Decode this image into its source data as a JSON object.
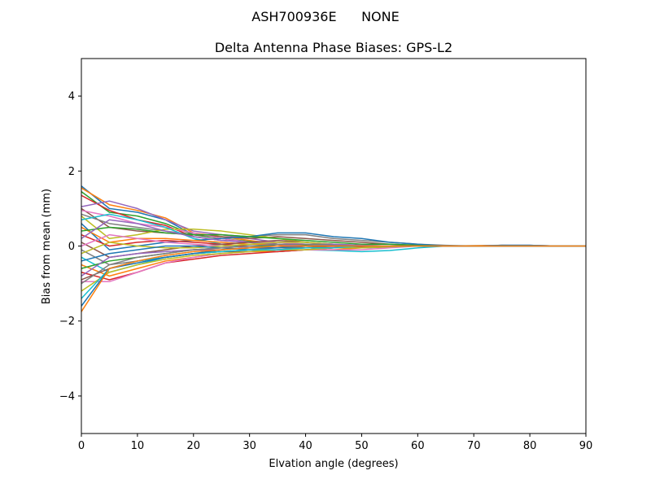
{
  "figure": {
    "suptitle": "ASH700936E      NONE"
  },
  "chart_data": {
    "type": "line",
    "title": "Delta Antenna Phase Biases: GPS-L2",
    "xlabel": "Elvation angle (degrees)",
    "ylabel": "Bias from mean (mm)",
    "xlim": [
      0,
      90
    ],
    "ylim": [
      -5,
      5
    ],
    "xticks": [
      0,
      10,
      20,
      30,
      40,
      50,
      60,
      70,
      80,
      90
    ],
    "yticks": [
      -4,
      -2,
      0,
      2,
      4
    ],
    "xtick_labels": [
      "0",
      "10",
      "20",
      "30",
      "40",
      "50",
      "60",
      "70",
      "80",
      "90"
    ],
    "ytick_labels": [
      "−4",
      "−2",
      "0",
      "2",
      "4"
    ],
    "grid": false,
    "legend": "none",
    "x": [
      0,
      5,
      10,
      15,
      20,
      25,
      30,
      35,
      40,
      45,
      50,
      55,
      60,
      65,
      70,
      75,
      80,
      85,
      90
    ],
    "palette": [
      "#1f77b4",
      "#ff7f0e",
      "#2ca02c",
      "#d62728",
      "#9467bd",
      "#8c564b",
      "#e377c2",
      "#7f7f7f",
      "#bcbd22",
      "#17becf"
    ],
    "series": [
      {
        "values": [
          1.6,
          1.0,
          0.9,
          0.7,
          0.3,
          0.2,
          0.1,
          0.0,
          -0.05,
          -0.05,
          -0.05,
          -0.03,
          0.0,
          0.0,
          0.0,
          0.02,
          0.02,
          0.0,
          0.0
        ]
      },
      {
        "values": [
          1.55,
          1.1,
          0.95,
          0.75,
          0.35,
          0.25,
          0.15,
          0.05,
          0.0,
          -0.02,
          -0.04,
          -0.03,
          0.0,
          0.0,
          0.01,
          0.02,
          0.01,
          0.0,
          0.0
        ]
      },
      {
        "values": [
          1.45,
          0.9,
          0.8,
          0.6,
          0.3,
          0.2,
          0.12,
          0.05,
          0.02,
          0.0,
          -0.02,
          -0.02,
          0.0,
          0.0,
          0.0,
          0.01,
          0.01,
          0.0,
          0.0
        ]
      },
      {
        "values": [
          1.35,
          0.95,
          0.7,
          0.55,
          0.25,
          0.15,
          0.1,
          0.05,
          0.0,
          0.0,
          -0.02,
          0.0,
          0.0,
          0.0,
          0.0,
          0.0,
          0.0,
          0.0,
          0.0
        ]
      },
      {
        "values": [
          1.05,
          1.2,
          1.0,
          0.7,
          0.4,
          0.3,
          0.2,
          0.1,
          0.05,
          0.02,
          0.0,
          0.0,
          0.0,
          0.0,
          0.0,
          0.02,
          0.02,
          0.0,
          0.0
        ]
      },
      {
        "values": [
          1.0,
          0.5,
          0.4,
          0.35,
          0.3,
          0.25,
          0.2,
          0.25,
          0.2,
          0.15,
          0.1,
          0.05,
          0.02,
          0.0,
          0.0,
          0.0,
          0.0,
          0.0,
          0.0
        ]
      },
      {
        "values": [
          0.95,
          0.8,
          0.6,
          0.5,
          0.35,
          0.2,
          0.1,
          0.1,
          0.05,
          0.05,
          0.02,
          0.0,
          0.0,
          0.0,
          0.0,
          0.0,
          0.0,
          0.0,
          0.0
        ]
      },
      {
        "values": [
          0.85,
          0.6,
          0.5,
          0.4,
          0.3,
          0.3,
          0.25,
          0.3,
          0.3,
          0.2,
          0.15,
          0.1,
          0.05,
          0.02,
          0.0,
          0.0,
          0.0,
          0.0,
          0.0
        ]
      },
      {
        "values": [
          0.8,
          0.2,
          0.3,
          0.45,
          0.45,
          0.4,
          0.3,
          0.2,
          0.1,
          0.05,
          0.0,
          -0.02,
          0.0,
          0.0,
          0.0,
          0.0,
          0.0,
          0.0,
          0.0
        ]
      },
      {
        "values": [
          0.7,
          0.85,
          0.7,
          0.5,
          0.2,
          0.05,
          -0.05,
          -0.05,
          0.0,
          0.0,
          0.0,
          0.0,
          0.0,
          0.0,
          0.0,
          0.0,
          0.0,
          0.0,
          0.0
        ]
      },
      {
        "values": [
          0.6,
          -0.1,
          0.0,
          0.1,
          0.15,
          0.2,
          0.25,
          0.35,
          0.35,
          0.25,
          0.2,
          0.1,
          0.05,
          0.0,
          0.0,
          0.02,
          0.02,
          0.0,
          0.0
        ]
      },
      {
        "values": [
          0.5,
          0.1,
          0.2,
          0.2,
          0.15,
          0.1,
          0.05,
          0.05,
          0.0,
          0.0,
          0.0,
          0.0,
          0.0,
          0.0,
          0.0,
          0.0,
          0.0,
          0.0,
          0.0
        ]
      },
      {
        "values": [
          0.4,
          0.5,
          0.45,
          0.35,
          0.3,
          0.3,
          0.25,
          0.2,
          0.15,
          0.1,
          0.05,
          0.05,
          0.02,
          0.0,
          0.0,
          0.0,
          0.0,
          0.0,
          0.0
        ]
      },
      {
        "values": [
          0.3,
          0.0,
          0.1,
          0.15,
          0.1,
          0.05,
          0.0,
          0.0,
          -0.05,
          -0.05,
          -0.02,
          0.0,
          0.0,
          0.0,
          0.0,
          0.0,
          0.0,
          0.0,
          0.0
        ]
      },
      {
        "values": [
          0.2,
          0.7,
          0.6,
          0.4,
          0.25,
          0.15,
          0.1,
          0.05,
          0.05,
          0.02,
          0.0,
          0.0,
          0.0,
          0.0,
          0.0,
          0.0,
          0.0,
          0.0,
          0.0
        ]
      },
      {
        "values": [
          0.1,
          -0.3,
          -0.2,
          -0.1,
          0.0,
          0.05,
          0.1,
          0.15,
          0.1,
          0.05,
          0.0,
          0.0,
          0.0,
          0.0,
          0.0,
          0.0,
          0.0,
          0.0,
          0.0
        ]
      },
      {
        "values": [
          0.0,
          0.3,
          0.2,
          0.1,
          0.05,
          0.0,
          -0.05,
          -0.05,
          -0.05,
          -0.02,
          0.0,
          0.0,
          0.0,
          0.0,
          0.0,
          0.0,
          0.0,
          0.0,
          0.0
        ]
      },
      {
        "values": [
          -0.1,
          -0.5,
          -0.4,
          -0.3,
          -0.2,
          -0.15,
          -0.1,
          -0.05,
          -0.05,
          -0.05,
          -0.05,
          -0.02,
          0.0,
          0.0,
          0.0,
          0.0,
          0.0,
          0.0,
          0.0
        ]
      },
      {
        "values": [
          -0.2,
          0.1,
          0.0,
          -0.05,
          -0.05,
          0.0,
          0.05,
          0.1,
          0.1,
          0.05,
          0.02,
          0.0,
          0.0,
          0.0,
          0.0,
          0.0,
          0.0,
          0.0,
          0.0
        ]
      },
      {
        "values": [
          -0.3,
          -0.7,
          -0.5,
          -0.3,
          -0.2,
          -0.15,
          -0.1,
          -0.1,
          -0.1,
          -0.12,
          -0.15,
          -0.12,
          -0.05,
          0.0,
          0.0,
          0.0,
          0.0,
          0.0,
          0.0
        ]
      },
      {
        "values": [
          -0.4,
          -0.2,
          -0.1,
          0.0,
          0.0,
          -0.05,
          -0.1,
          -0.15,
          -0.1,
          -0.05,
          0.0,
          0.0,
          0.0,
          0.0,
          0.0,
          0.0,
          0.0,
          0.0,
          0.0
        ]
      },
      {
        "values": [
          -0.5,
          -0.8,
          -0.6,
          -0.4,
          -0.3,
          -0.2,
          -0.15,
          -0.15,
          -0.1,
          -0.1,
          -0.05,
          -0.02,
          0.0,
          0.0,
          0.0,
          0.0,
          0.0,
          0.0,
          0.0
        ]
      },
      {
        "values": [
          -0.6,
          -0.4,
          -0.3,
          -0.2,
          -0.1,
          -0.05,
          0.0,
          0.0,
          0.0,
          0.0,
          0.0,
          0.0,
          0.0,
          0.0,
          0.0,
          0.0,
          0.0,
          0.0,
          0.0
        ]
      },
      {
        "values": [
          -0.7,
          -0.9,
          -0.7,
          -0.45,
          -0.35,
          -0.25,
          -0.2,
          -0.15,
          -0.1,
          -0.05,
          0.0,
          0.0,
          0.0,
          0.0,
          0.0,
          0.0,
          0.0,
          0.0,
          0.0
        ]
      },
      {
        "values": [
          -0.8,
          -0.3,
          -0.2,
          -0.15,
          -0.1,
          -0.1,
          -0.05,
          0.0,
          0.05,
          0.05,
          0.02,
          0.0,
          0.0,
          0.0,
          0.0,
          0.0,
          0.0,
          0.0,
          0.0
        ]
      },
      {
        "values": [
          -0.9,
          -0.6,
          -0.4,
          -0.3,
          -0.2,
          -0.15,
          -0.15,
          -0.1,
          -0.05,
          0.0,
          0.0,
          0.0,
          0.0,
          0.0,
          0.0,
          0.0,
          0.0,
          0.0,
          0.0
        ]
      },
      {
        "values": [
          -0.95,
          -0.95,
          -0.7,
          -0.45,
          -0.3,
          -0.2,
          -0.15,
          -0.1,
          -0.1,
          -0.1,
          -0.1,
          -0.05,
          0.0,
          0.0,
          0.0,
          0.0,
          0.0,
          0.0,
          0.0
        ]
      },
      {
        "values": [
          -1.0,
          -0.5,
          -0.3,
          -0.2,
          -0.1,
          -0.05,
          0.0,
          0.05,
          0.05,
          0.02,
          0.0,
          0.0,
          0.0,
          0.0,
          0.0,
          0.0,
          0.0,
          0.0,
          0.0
        ]
      },
      {
        "values": [
          -1.2,
          -0.7,
          -0.5,
          -0.35,
          -0.25,
          -0.2,
          -0.15,
          -0.1,
          -0.1,
          -0.05,
          -0.05,
          -0.02,
          0.0,
          0.0,
          0.0,
          0.0,
          0.0,
          0.0,
          0.0
        ]
      },
      {
        "values": [
          -1.4,
          -0.6,
          -0.4,
          -0.3,
          -0.2,
          -0.15,
          -0.1,
          -0.1,
          -0.05,
          -0.05,
          0.0,
          0.0,
          0.0,
          0.0,
          0.0,
          0.0,
          0.0,
          0.0,
          0.0
        ]
      },
      {
        "values": [
          -1.6,
          -0.6,
          -0.45,
          -0.3,
          -0.2,
          -0.1,
          -0.05,
          -0.05,
          0.0,
          0.0,
          0.0,
          0.0,
          0.0,
          0.0,
          0.0,
          0.0,
          0.0,
          0.0,
          0.0
        ]
      },
      {
        "values": [
          -1.75,
          -0.6,
          -0.4,
          -0.25,
          -0.15,
          -0.1,
          -0.05,
          0.0,
          0.0,
          0.0,
          0.0,
          0.0,
          0.0,
          0.0,
          0.0,
          0.0,
          0.0,
          0.0,
          0.0
        ]
      }
    ]
  }
}
